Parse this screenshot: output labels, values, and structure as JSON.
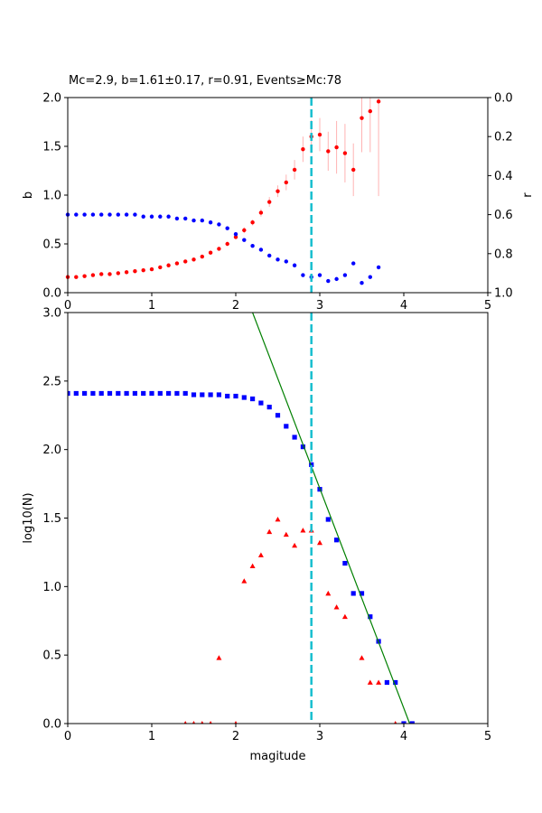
{
  "title": "Mc=2.9, b=1.61±0.17, r=0.91, Events≥Mc:78",
  "colors": {
    "b_series": "#ff0000",
    "r_series": "#0000ff",
    "err_bar": "#ffb3b3",
    "mc_line": "#17becf",
    "fit_line": "#008000",
    "cum_series": "#0000ff",
    "noncum_series": "#ff0000",
    "axis": "#000000"
  },
  "chart_data": [
    {
      "type": "scatter",
      "xlim": [
        0,
        5
      ],
      "ylim": [
        0,
        2.0
      ],
      "ylabel": "b",
      "x_ticks": [
        "0",
        "1",
        "2",
        "3",
        "4",
        "5"
      ],
      "y_ticks": [
        "0.0",
        "0.5",
        "1.0",
        "1.5",
        "2.0"
      ],
      "secondary_axis": {
        "ylabel": "r",
        "ylim_inverted": [
          0.0,
          1.0
        ],
        "y_ticks": [
          "0.0",
          "0.2",
          "0.4",
          "0.6",
          "0.8",
          "1.0"
        ]
      },
      "mc_line_x": 2.9,
      "series": [
        {
          "axis": "left",
          "x": [
            0.0,
            0.1,
            0.2,
            0.3,
            0.4,
            0.5,
            0.6,
            0.7,
            0.8,
            0.9,
            1.0,
            1.1,
            1.2,
            1.3,
            1.4,
            1.5,
            1.6,
            1.7,
            1.8,
            1.9,
            2.0,
            2.1,
            2.2,
            2.3,
            2.4,
            2.5,
            2.6,
            2.7,
            2.8,
            2.9,
            3.0,
            3.1,
            3.2,
            3.3,
            3.4,
            3.5,
            3.6,
            3.7
          ],
          "values": [
            0.16,
            0.16,
            0.17,
            0.18,
            0.19,
            0.19,
            0.2,
            0.21,
            0.22,
            0.23,
            0.24,
            0.26,
            0.28,
            0.3,
            0.32,
            0.34,
            0.37,
            0.41,
            0.45,
            0.5,
            0.57,
            0.64,
            0.72,
            0.82,
            0.93,
            1.04,
            1.13,
            1.26,
            1.47,
            1.6,
            1.62,
            1.45,
            1.49,
            1.43,
            1.26,
            1.79,
            1.86,
            1.96
          ],
          "errors": [
            0.0,
            0.0,
            0.0,
            0.0,
            0.0,
            0.0,
            0.0,
            0.0,
            0.0,
            0.0,
            0.0,
            0.0,
            0.0,
            0.0,
            0.0,
            0.0,
            0.0,
            0.01,
            0.01,
            0.02,
            0.02,
            0.03,
            0.03,
            0.04,
            0.05,
            0.06,
            0.08,
            0.1,
            0.13,
            0.17,
            0.17,
            0.2,
            0.27,
            0.3,
            0.27,
            0.35,
            0.42,
            0.97
          ]
        },
        {
          "axis": "right",
          "x": [
            0.0,
            0.1,
            0.2,
            0.3,
            0.4,
            0.5,
            0.6,
            0.7,
            0.8,
            0.9,
            1.0,
            1.1,
            1.2,
            1.3,
            1.4,
            1.5,
            1.6,
            1.7,
            1.8,
            1.9,
            2.0,
            2.1,
            2.2,
            2.3,
            2.4,
            2.5,
            2.6,
            2.7,
            2.8,
            2.9,
            3.0,
            3.1,
            3.2,
            3.3,
            3.4,
            3.5,
            3.6,
            3.7
          ],
          "values": [
            0.6,
            0.6,
            0.6,
            0.6,
            0.6,
            0.6,
            0.6,
            0.6,
            0.6,
            0.61,
            0.61,
            0.61,
            0.61,
            0.62,
            0.62,
            0.63,
            0.63,
            0.64,
            0.65,
            0.67,
            0.7,
            0.73,
            0.76,
            0.78,
            0.81,
            0.83,
            0.84,
            0.86,
            0.91,
            0.92,
            0.91,
            0.94,
            0.93,
            0.91,
            0.85,
            0.95,
            0.92,
            0.87
          ]
        }
      ]
    },
    {
      "type": "scatter",
      "xlim": [
        0,
        5
      ],
      "ylim": [
        0,
        3.0
      ],
      "xlabel": "magitude",
      "ylabel": "log10(N)",
      "x_ticks": [
        "0",
        "1",
        "2",
        "3",
        "4",
        "5"
      ],
      "y_ticks": [
        "0.0",
        "0.5",
        "1.0",
        "1.5",
        "2.0",
        "2.5",
        "3.0"
      ],
      "mc_line_x": 2.9,
      "fit_line": {
        "x": [
          2.2,
          4.07
        ],
        "y": [
          3.0,
          0.0
        ]
      },
      "series": [
        {
          "marker": "square",
          "x": [
            0.0,
            0.1,
            0.2,
            0.3,
            0.4,
            0.5,
            0.6,
            0.7,
            0.8,
            0.9,
            1.0,
            1.1,
            1.2,
            1.3,
            1.4,
            1.5,
            1.6,
            1.7,
            1.8,
            1.9,
            2.0,
            2.1,
            2.2,
            2.3,
            2.4,
            2.5,
            2.6,
            2.7,
            2.8,
            2.9,
            3.0,
            3.1,
            3.2,
            3.3,
            3.4,
            3.5,
            3.6,
            3.7,
            3.8,
            3.9,
            4.0,
            4.1
          ],
          "values": [
            2.41,
            2.41,
            2.41,
            2.41,
            2.41,
            2.41,
            2.41,
            2.41,
            2.41,
            2.41,
            2.41,
            2.41,
            2.41,
            2.41,
            2.41,
            2.4,
            2.4,
            2.4,
            2.4,
            2.39,
            2.39,
            2.38,
            2.37,
            2.34,
            2.31,
            2.25,
            2.17,
            2.09,
            2.02,
            1.89,
            1.71,
            1.49,
            1.34,
            1.17,
            0.95,
            0.95,
            0.78,
            0.6,
            0.3,
            0.3,
            0.0,
            0.0
          ]
        },
        {
          "marker": "triangle",
          "x": [
            1.4,
            1.5,
            1.6,
            1.7,
            1.8,
            2.0,
            2.1,
            2.2,
            2.3,
            2.4,
            2.5,
            2.6,
            2.7,
            2.8,
            2.9,
            3.0,
            3.1,
            3.2,
            3.3,
            3.5,
            3.6,
            3.7,
            3.9
          ],
          "values": [
            0.0,
            0.0,
            0.0,
            0.0,
            0.48,
            0.0,
            1.04,
            1.15,
            1.23,
            1.4,
            1.49,
            1.38,
            1.3,
            1.41,
            1.41,
            1.32,
            0.95,
            0.85,
            0.78,
            0.48,
            0.3,
            0.3,
            0.0
          ]
        }
      ]
    }
  ]
}
